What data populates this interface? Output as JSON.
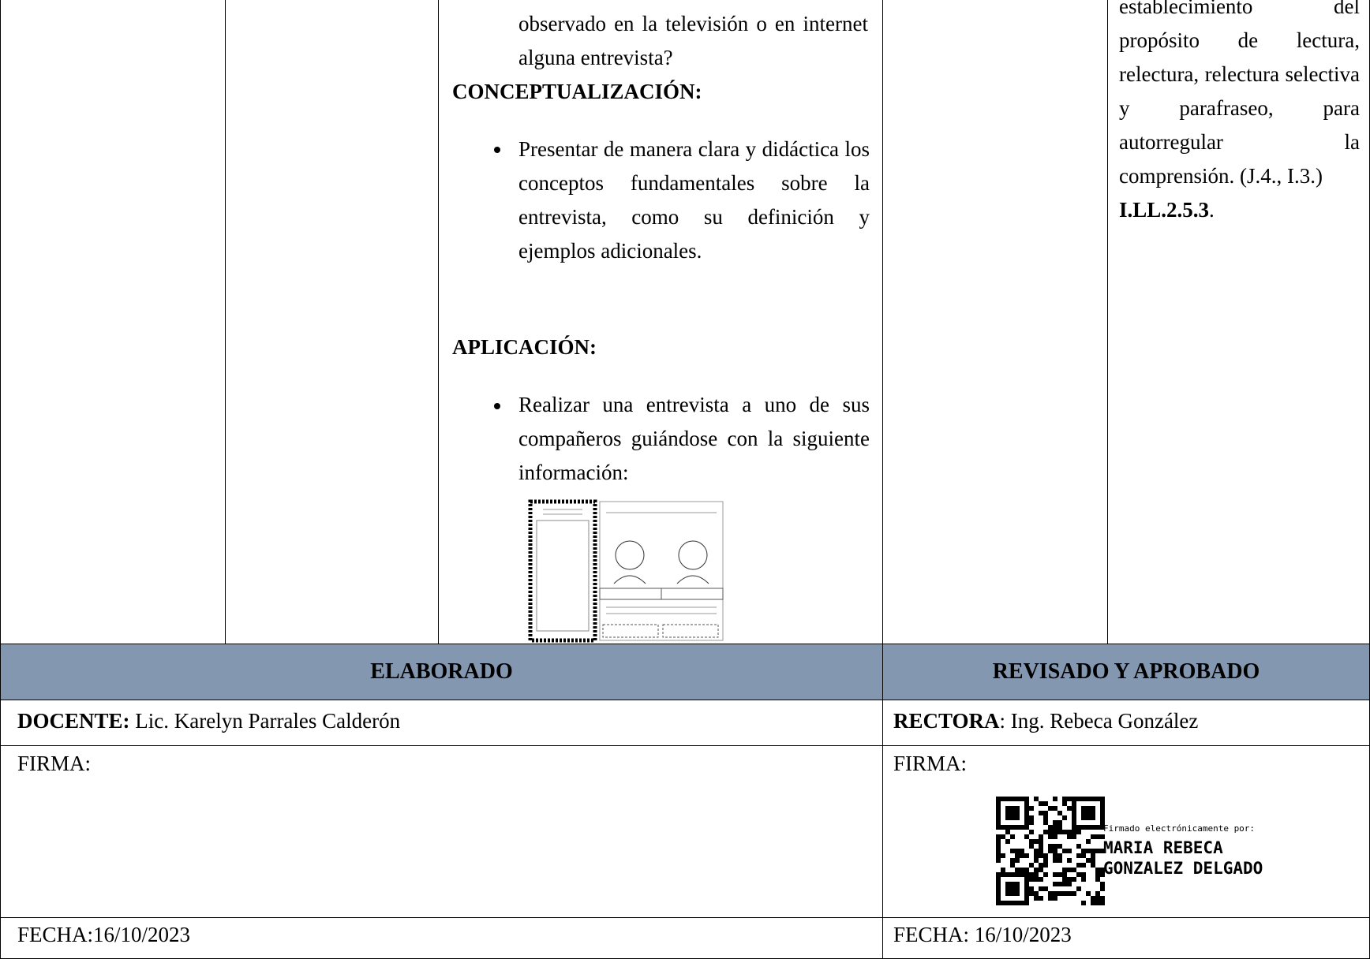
{
  "activities": {
    "continuation": "observado en la televisión o en internet alguna entrevista?",
    "conceptualization": {
      "heading": "CONCEPTUALIZACIÓN:",
      "bullet": "Presentar de manera clara y didáctica los conceptos fundamentales sobre la entrevista, como su definición y ejemplos adicionales."
    },
    "application": {
      "heading": "APLICACIÓN:",
      "bullet": "Realizar una entrevista a uno de sus compañeros guiándose con la siguiente información:"
    }
  },
  "indicator": {
    "text": "establecimiento del propósito de lectura, relectura, relectura selectiva y parafraseo, para autorregular la comprensión. (J.4., I.3.)",
    "code": "I.LL.2.5.3",
    "end": "."
  },
  "footer": {
    "elaborated": "ELABORADO",
    "reviewed": "REVISADO Y APROBADO",
    "teacher": {
      "label": "DOCENTE:",
      "name": "Lic. Karelyn Parrales Calderón"
    },
    "rector": {
      "label": "RECTORA",
      "name": ": Ing. Rebeca González"
    },
    "signature_left": "FIRMA:",
    "signature_right": "FIRMA:",
    "date_left": "FECHA:16/10/2023",
    "date_right": "FECHA: 16/10/2023",
    "e_signature": {
      "caption": "Firmado electrónicamente por:",
      "name_line1": "MARIA REBECA",
      "name_line2": "GONZALEZ DELGADO"
    }
  }
}
